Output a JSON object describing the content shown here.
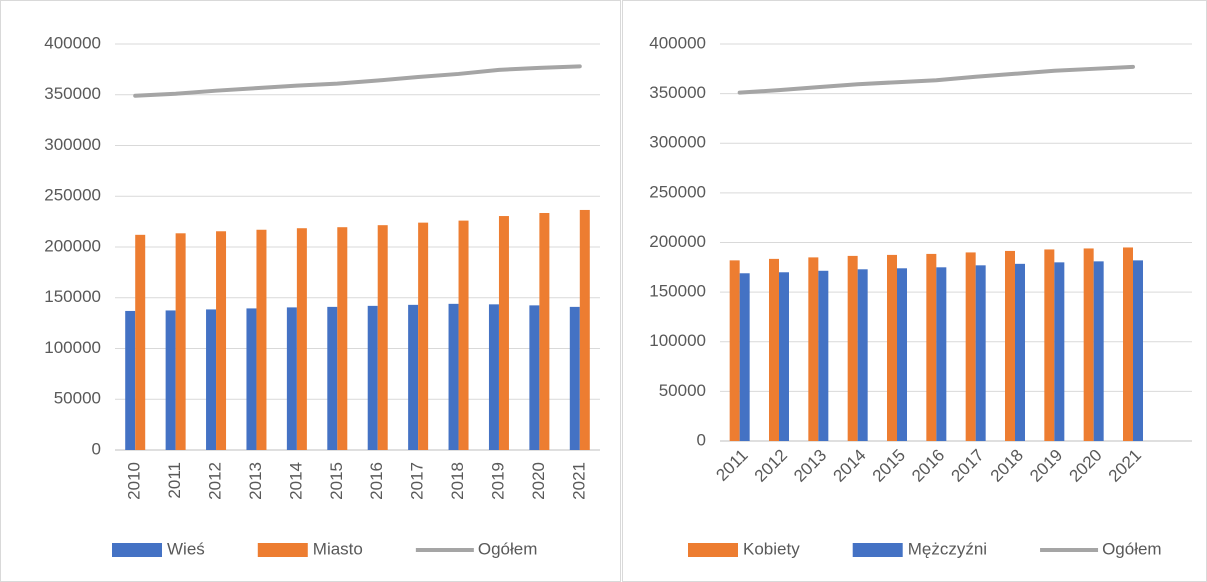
{
  "chart_data": [
    {
      "type": "bar",
      "categories": [
        "2010",
        "2011",
        "2012",
        "2013",
        "2014",
        "2015",
        "2016",
        "2017",
        "2018",
        "2019",
        "2020",
        "2021"
      ],
      "series": [
        {
          "name": "Wieś",
          "color": "#4472c4",
          "values": [
            137000,
            137500,
            138500,
            139500,
            140500,
            141000,
            142000,
            143000,
            144000,
            143500,
            142500,
            141000
          ]
        },
        {
          "name": "Miasto",
          "color": "#ed7d31",
          "values": [
            212000,
            213500,
            215500,
            217000,
            218500,
            219500,
            221500,
            224000,
            226000,
            230500,
            233500,
            236500
          ]
        },
        {
          "name": "Ogółem",
          "color": "#a5a5a5",
          "type": "line",
          "values": [
            349000,
            351000,
            354000,
            356500,
            359000,
            361000,
            364000,
            367500,
            370500,
            374500,
            376500,
            378000
          ]
        }
      ],
      "ylim": [
        0,
        400000
      ],
      "yticks": [
        0,
        50000,
        100000,
        150000,
        200000,
        250000,
        300000,
        350000,
        400000
      ],
      "grid": true,
      "legend": "bottom"
    },
    {
      "type": "bar",
      "categories": [
        "2011",
        "2012",
        "2013",
        "2014",
        "2015",
        "2016",
        "2017",
        "2018",
        "2019",
        "2020",
        "2021",
        null
      ],
      "series": [
        {
          "name": "Kobiety",
          "color": "#ed7d31",
          "values": [
            182000,
            183500,
            185000,
            186500,
            187500,
            188500,
            190000,
            191500,
            193000,
            194000,
            195000,
            null
          ]
        },
        {
          "name": "Mężczyźni",
          "color": "#4472c4",
          "values": [
            169000,
            170000,
            171500,
            173000,
            174000,
            175000,
            177000,
            178500,
            180000,
            181000,
            182000,
            null
          ]
        },
        {
          "name": "Ogółem",
          "color": "#a5a5a5",
          "type": "line",
          "values": [
            351000,
            353500,
            356500,
            359500,
            361500,
            363500,
            367000,
            370000,
            373000,
            375000,
            377000,
            null
          ]
        }
      ],
      "ylim": [
        0,
        400000
      ],
      "yticks": [
        0,
        50000,
        100000,
        150000,
        200000,
        250000,
        300000,
        350000,
        400000
      ],
      "grid": true,
      "legend": "bottom"
    }
  ]
}
